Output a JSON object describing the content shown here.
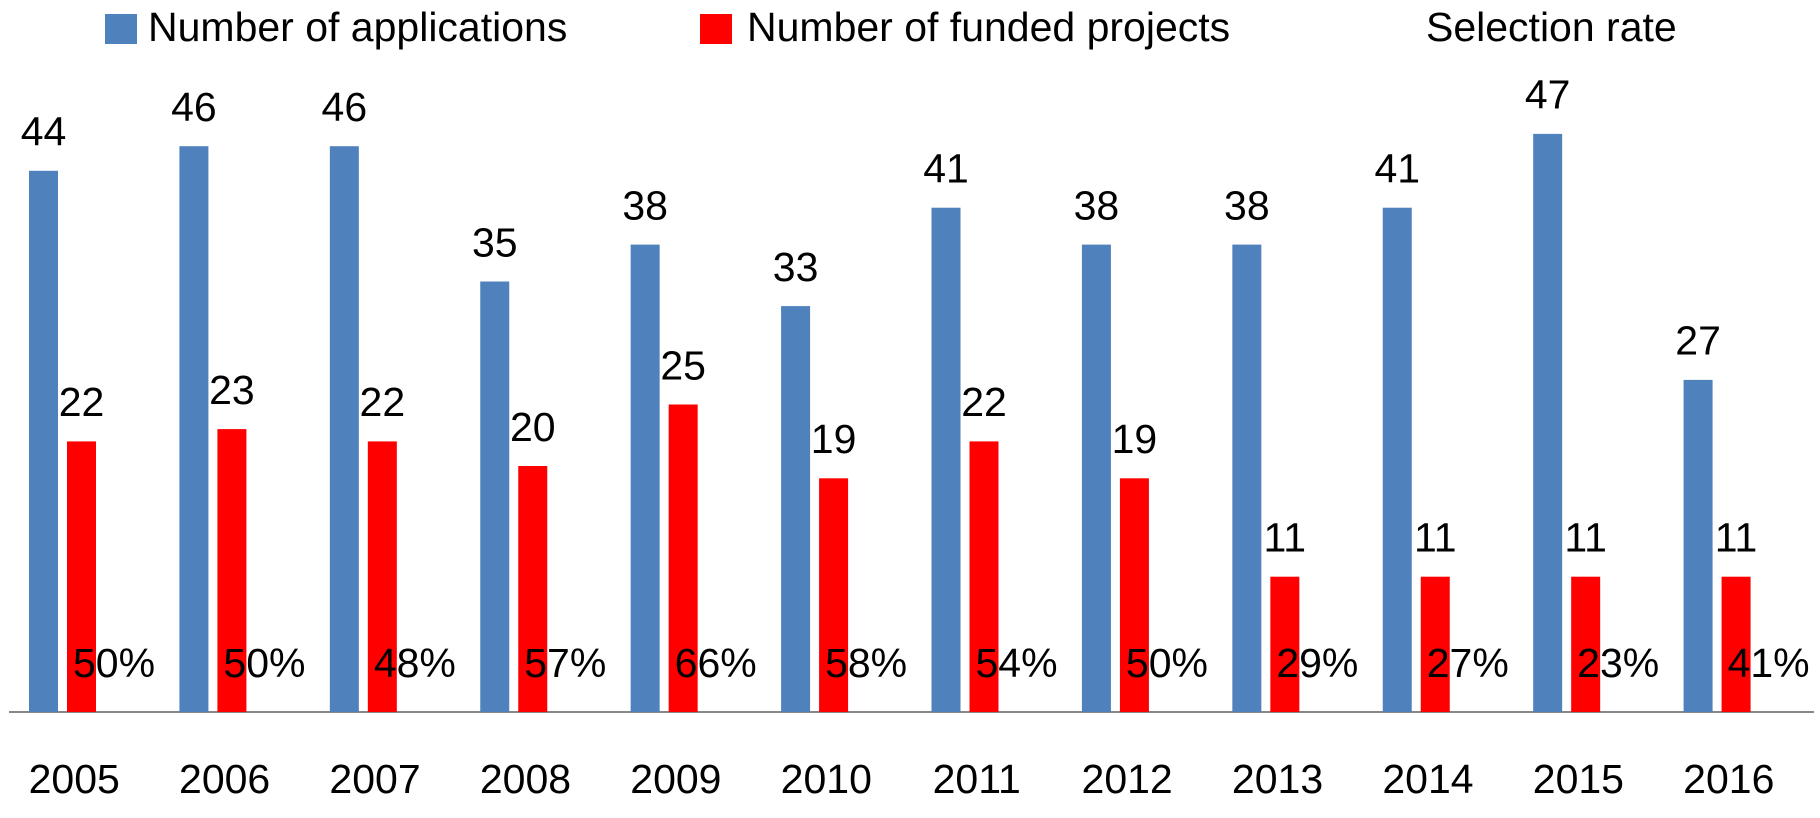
{
  "chart_data": {
    "type": "bar",
    "categories": [
      "2005",
      "2006",
      "2007",
      "2008",
      "2009",
      "2010",
      "2011",
      "2012",
      "2013",
      "2014",
      "2015",
      "2016"
    ],
    "series": [
      {
        "name": "Number of applications",
        "color": "#4f81bd",
        "values": [
          44,
          46,
          46,
          35,
          38,
          33,
          41,
          38,
          38,
          41,
          47,
          27
        ]
      },
      {
        "name": "Number of funded projects",
        "color": "#ff0000",
        "values": [
          22,
          23,
          22,
          20,
          25,
          19,
          22,
          19,
          11,
          11,
          11,
          11
        ]
      },
      {
        "name": "Selection rate",
        "axis": "y2",
        "values": [
          50,
          50,
          48,
          57,
          66,
          58,
          54,
          50,
          29,
          27,
          23,
          41
        ],
        "value_labels": [
          "50%",
          "50%",
          "48%",
          "57%",
          "66%",
          "58%",
          "54%",
          "50%",
          "29%",
          "27%",
          "23%",
          "41%"
        ]
      }
    ],
    "ylim": [
      0,
      50
    ]
  }
}
